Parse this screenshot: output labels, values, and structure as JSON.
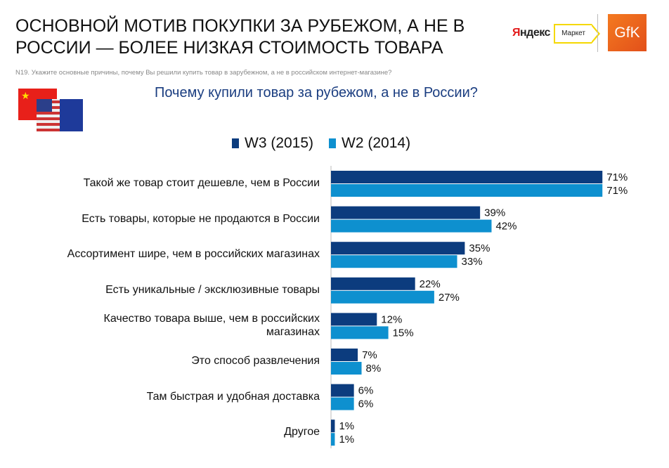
{
  "title": "ОСНОВНОЙ МОТИВ ПОКУПКИ ЗА РУБЕЖОМ, А НЕ В РОССИИ — БОЛЕЕ НИЗКАЯ СТОИМОСТЬ ТОВАРА",
  "logos": {
    "yandex": "Яндекс",
    "market": "Маркет",
    "gfk": "GfK"
  },
  "question": "N19. Укажите основные причины, почему Вы решили купить товар в зарубежном, а не в российском интернет-магазине?",
  "colors": {
    "w3": "#0c3c7e",
    "w2": "#0e90cf",
    "title": "#1a3d80"
  },
  "chart_data": {
    "type": "bar",
    "orientation": "horizontal",
    "title": "Почему купили товар за рубежом, а не в России?",
    "legend_placement": "top",
    "categories": [
      "Такой же товар стоит дешевле, чем в России",
      "Есть товары, которые не продаются в России",
      "Ассортимент шире, чем в российских магазинах",
      "Есть уникальные / эксклюзивные товары",
      "Качество товара выше, чем в российских магазинах",
      "Это способ развлечения",
      "Там быстрая и удобная доставка",
      "Другое"
    ],
    "series": [
      {
        "name": "W3 (2015)",
        "values": [
          71,
          39,
          35,
          22,
          12,
          7,
          6,
          1
        ]
      },
      {
        "name": "W2 (2014)",
        "values": [
          71,
          42,
          33,
          27,
          15,
          8,
          6,
          1
        ]
      }
    ],
    "value_suffix": "%",
    "grid": false
  }
}
